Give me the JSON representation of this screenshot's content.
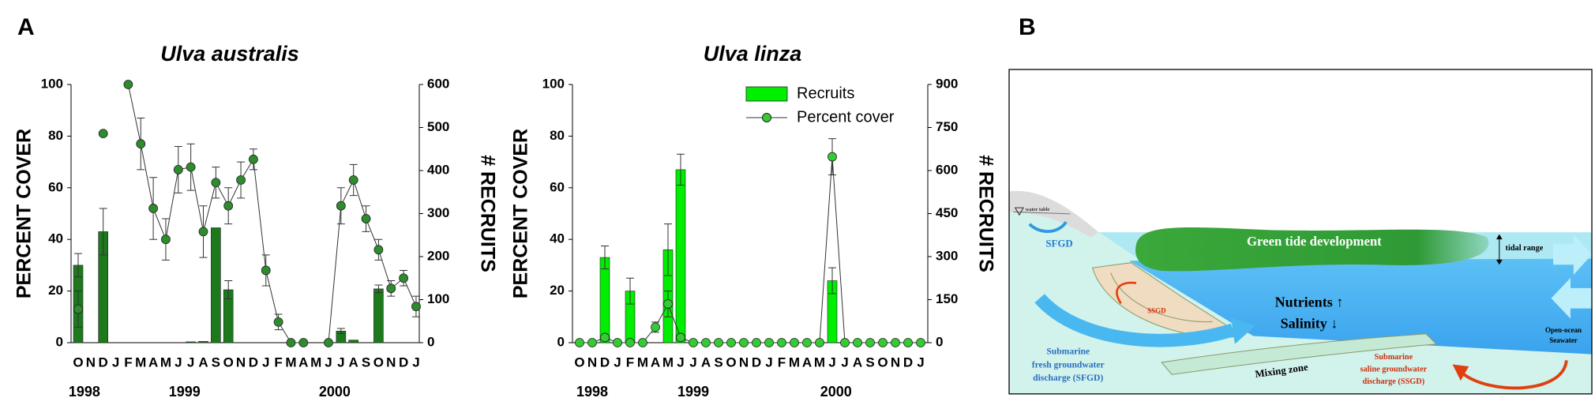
{
  "panel_labels": [
    "A",
    "B"
  ],
  "chart_data": [
    {
      "type": "bar",
      "title": "Ulva australis",
      "y_label": "PERCENT COVER",
      "y2_label": "# RECRUITS",
      "categories": [
        "O",
        "N",
        "D",
        "J",
        "F",
        "M",
        "A",
        "M",
        "J",
        "J",
        "A",
        "S",
        "O",
        "N",
        "D",
        "J",
        "F",
        "M",
        "A",
        "M",
        "J",
        "J",
        "A",
        "S",
        "O",
        "N",
        "D",
        "J"
      ],
      "years": [
        "1998",
        "1999",
        "2000"
      ],
      "ylim": [
        0,
        100
      ],
      "yticks": [
        0,
        20,
        40,
        60,
        80,
        100
      ],
      "y2lim": [
        0,
        600
      ],
      "y2ticks": [
        0,
        100,
        200,
        300,
        400,
        500,
        600
      ],
      "series": [
        {
          "type": "bar",
          "axis": "y2",
          "color": "#1c7a1c",
          "values": [
            180,
            0,
            258,
            0,
            0,
            0,
            0,
            0,
            0,
            2,
            3,
            267,
            123,
            0,
            0,
            0,
            0,
            0,
            0,
            0,
            0,
            27,
            6,
            0,
            125,
            0,
            0,
            0
          ],
          "errors": [
            27,
            null,
            54,
            null,
            null,
            null,
            null,
            null,
            null,
            null,
            null,
            null,
            21,
            null,
            null,
            null,
            null,
            null,
            null,
            null,
            null,
            6,
            null,
            null,
            9,
            null,
            null,
            null
          ]
        },
        {
          "type": "line",
          "color": "#2e8b2e",
          "values": [
            13,
            null,
            81,
            null,
            100,
            77,
            52,
            40,
            67,
            68,
            43,
            62,
            53,
            63,
            71,
            28,
            8,
            0,
            0,
            null,
            0,
            53,
            63,
            48,
            36,
            21,
            25,
            14
          ],
          "errors": [
            7,
            null,
            0,
            null,
            0,
            10,
            12,
            8,
            9,
            9,
            10,
            6,
            7,
            7,
            4,
            6,
            3,
            0,
            0,
            null,
            0,
            7,
            6,
            5,
            4,
            3,
            3,
            4
          ]
        }
      ]
    },
    {
      "type": "bar",
      "title": "Ulva linza",
      "y_label": "PERCENT COVER",
      "y2_label": "# RECRUITS",
      "categories": [
        "O",
        "N",
        "D",
        "J",
        "F",
        "M",
        "A",
        "M",
        "J",
        "J",
        "A",
        "S",
        "O",
        "N",
        "D",
        "J",
        "F",
        "M",
        "A",
        "M",
        "J",
        "J",
        "A",
        "S",
        "O",
        "N",
        "D",
        "J"
      ],
      "years": [
        "1998",
        "1999",
        "2000"
      ],
      "ylim": [
        0,
        100
      ],
      "yticks": [
        0,
        20,
        40,
        60,
        80,
        100
      ],
      "y2lim": [
        0,
        900
      ],
      "y2ticks": [
        0,
        150,
        300,
        450,
        600,
        750,
        900
      ],
      "legend": "upper right",
      "series": [
        {
          "name": "Recruits",
          "type": "bar",
          "axis": "y2",
          "color": "#00ee00",
          "values": [
            0,
            0,
            297,
            0,
            180,
            0,
            0,
            324,
            603,
            0,
            0,
            0,
            0,
            0,
            0,
            0,
            0,
            0,
            0,
            0,
            216,
            0,
            0,
            0,
            0,
            0,
            0,
            0
          ],
          "errors": [
            null,
            null,
            40,
            null,
            45,
            null,
            null,
            90,
            54,
            null,
            null,
            null,
            null,
            null,
            null,
            null,
            null,
            null,
            null,
            null,
            45,
            null,
            null,
            null,
            null,
            null,
            null,
            null
          ]
        },
        {
          "name": "Percent cover",
          "type": "line",
          "color": "#33cc33",
          "values": [
            0,
            0,
            2,
            0,
            0,
            0,
            6,
            15,
            2,
            0,
            0,
            0,
            0,
            0,
            0,
            0,
            0,
            0,
            0,
            0,
            72,
            0,
            0,
            0,
            0,
            0,
            0,
            0
          ],
          "errors": [
            null,
            null,
            null,
            null,
            null,
            null,
            2,
            5,
            null,
            null,
            null,
            null,
            null,
            null,
            null,
            null,
            null,
            null,
            null,
            null,
            7,
            null,
            null,
            null,
            null,
            null,
            null,
            null
          ]
        }
      ]
    }
  ],
  "diagram": {
    "water_table": "water table",
    "sfgd": "SFGD",
    "green_tide": "Green tide development",
    "tidal_range": "tidal range",
    "ssgd": "SSGD",
    "nutrients": "Nutrients ↑",
    "salinity": "Salinity ↓",
    "sfgd_long": [
      "Submarine",
      "fresh groundwater",
      "discharge (SFGD)"
    ],
    "mixing_zone": "Mixing zone",
    "ssgd_long": [
      "Submarine",
      "saline groundwater",
      "discharge (SSGD)"
    ],
    "ocean": [
      "Open-ocean",
      "Seawater"
    ]
  }
}
